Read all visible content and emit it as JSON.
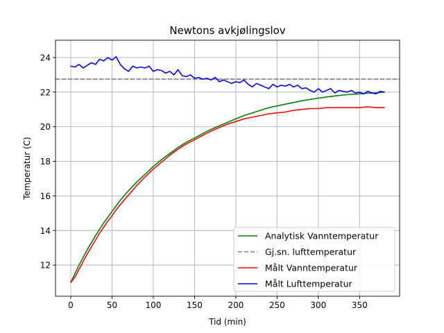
{
  "chart_data": {
    "type": "line",
    "title": "Newtons avkjølingslov",
    "xlabel": "Tid (min)",
    "ylabel": "Temperatur (C)",
    "xlim": [
      -18.5,
      398.5
    ],
    "ylim": [
      10.2,
      25.0
    ],
    "xticks": [
      0,
      50,
      100,
      150,
      200,
      250,
      300,
      350
    ],
    "yticks": [
      12,
      14,
      16,
      18,
      20,
      22,
      24
    ],
    "grid": true,
    "legend_position": "lower right",
    "series": [
      {
        "name": "Analytisk Vanntemperatur",
        "color": "#008000",
        "dash": "",
        "x": [
          0,
          10,
          20,
          30,
          40,
          50,
          60,
          70,
          80,
          90,
          100,
          110,
          120,
          130,
          140,
          150,
          160,
          170,
          180,
          190,
          200,
          210,
          220,
          230,
          240,
          250,
          260,
          270,
          280,
          290,
          300,
          310,
          320,
          330,
          340,
          350,
          360,
          370,
          380
        ],
        "y": [
          11.0,
          12.0,
          12.9,
          13.7,
          14.45,
          15.1,
          15.75,
          16.3,
          16.8,
          17.25,
          17.7,
          18.1,
          18.45,
          18.8,
          19.1,
          19.35,
          19.6,
          19.85,
          20.05,
          20.25,
          20.45,
          20.65,
          20.8,
          20.95,
          21.1,
          21.2,
          21.3,
          21.4,
          21.5,
          21.58,
          21.65,
          21.72,
          21.78,
          21.83,
          21.87,
          21.9,
          21.93,
          21.96,
          22.0
        ]
      },
      {
        "name": "Gj.sn. lufttemperatur",
        "color": "#808080",
        "dash": "6,3",
        "x": [
          -18.5,
          398.5
        ],
        "y": [
          22.75,
          22.75
        ]
      },
      {
        "name": "Målt Vanntemperatur",
        "color": "#ff0000",
        "dash": "",
        "x": [
          0,
          5,
          10,
          15,
          20,
          25,
          30,
          35,
          40,
          45,
          50,
          55,
          60,
          70,
          80,
          90,
          100,
          110,
          120,
          130,
          140,
          150,
          160,
          170,
          180,
          190,
          200,
          210,
          220,
          230,
          240,
          250,
          260,
          270,
          280,
          290,
          300,
          310,
          320,
          330,
          340,
          350,
          360,
          370,
          380
        ],
        "y": [
          11.0,
          11.3,
          11.75,
          12.2,
          12.65,
          13.05,
          13.45,
          13.85,
          14.2,
          14.55,
          14.85,
          15.2,
          15.5,
          16.05,
          16.6,
          17.1,
          17.55,
          17.95,
          18.35,
          18.7,
          19.0,
          19.25,
          19.5,
          19.75,
          19.95,
          20.15,
          20.3,
          20.45,
          20.55,
          20.65,
          20.75,
          20.8,
          20.85,
          20.95,
          21.0,
          21.05,
          21.05,
          21.1,
          21.1,
          21.1,
          21.1,
          21.1,
          21.15,
          21.1,
          21.1
        ]
      },
      {
        "name": "Målt Lufttemperatur",
        "color": "#0000ff",
        "dash": "",
        "x": [
          0,
          5,
          10,
          15,
          20,
          25,
          30,
          35,
          40,
          45,
          50,
          55,
          60,
          65,
          70,
          75,
          80,
          85,
          90,
          95,
          100,
          105,
          110,
          115,
          120,
          125,
          130,
          135,
          140,
          145,
          150,
          155,
          160,
          165,
          170,
          175,
          180,
          185,
          190,
          195,
          200,
          205,
          210,
          215,
          220,
          225,
          230,
          235,
          240,
          245,
          250,
          255,
          260,
          265,
          270,
          275,
          280,
          285,
          290,
          295,
          300,
          305,
          310,
          315,
          320,
          325,
          330,
          335,
          340,
          345,
          350,
          355,
          360,
          365,
          370,
          375,
          380
        ],
        "y": [
          23.5,
          23.45,
          23.6,
          23.4,
          23.55,
          23.7,
          23.6,
          23.9,
          23.8,
          24.0,
          23.85,
          24.05,
          23.6,
          23.35,
          23.2,
          23.5,
          23.4,
          23.45,
          23.4,
          23.5,
          23.2,
          23.3,
          23.25,
          23.1,
          23.2,
          23.0,
          23.3,
          22.95,
          22.9,
          23.0,
          22.8,
          22.85,
          22.75,
          22.8,
          22.7,
          22.85,
          22.6,
          22.7,
          22.6,
          22.5,
          22.6,
          22.55,
          22.7,
          22.45,
          22.3,
          22.5,
          22.4,
          22.3,
          22.2,
          22.45,
          22.3,
          22.4,
          22.35,
          22.45,
          22.3,
          22.4,
          22.2,
          22.25,
          22.1,
          22.0,
          22.2,
          22.0,
          22.1,
          22.2,
          21.95,
          22.1,
          22.05,
          22.0,
          22.1,
          21.95,
          22.0,
          21.9,
          22.05,
          21.95,
          21.9,
          22.05,
          22.0
        ]
      }
    ]
  }
}
